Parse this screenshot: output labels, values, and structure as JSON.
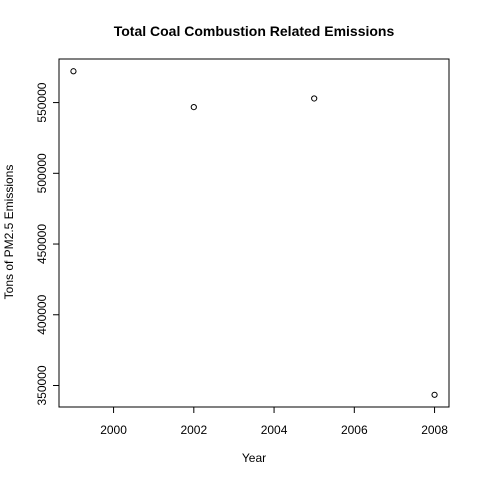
{
  "chart_data": {
    "type": "scatter",
    "title": "Total Coal Combustion Related Emissions",
    "xlabel": "Year",
    "ylabel": "Tons of PM2.5 Emissions",
    "x": [
      1999,
      2002,
      2005,
      2008
    ],
    "y": [
      572126,
      546789,
      552881,
      343432
    ],
    "xlim": [
      1998.64,
      2008.36
    ],
    "ylim": [
      334800,
      580800
    ],
    "xticks": [
      2000,
      2002,
      2004,
      2006,
      2008
    ],
    "yticks": [
      350000,
      400000,
      450000,
      500000,
      550000
    ],
    "xtick_labels": [
      "2000",
      "2002",
      "2004",
      "2006",
      "2008"
    ],
    "ytick_labels": [
      "350000",
      "400000",
      "450000",
      "500000",
      "550000"
    ],
    "grid": false,
    "marker": "open-circle",
    "colors": {
      "point": "#000000",
      "frame": "#000000",
      "background": "#ffffff"
    }
  }
}
